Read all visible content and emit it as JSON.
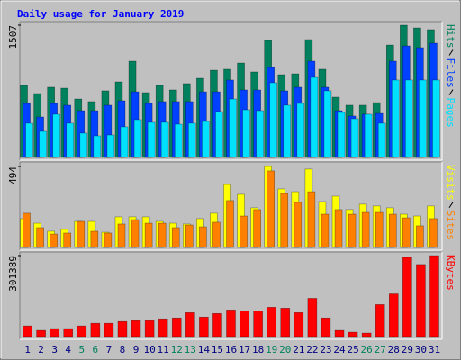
{
  "title": "Daily usage for January 2019",
  "chart_data": [
    {
      "type": "bar",
      "ylim": [
        0,
        1507
      ],
      "yticks": [
        1507
      ],
      "series": [
        {
          "name": "Hits",
          "color": "#00805c",
          "values": [
            820,
            728,
            800,
            789,
            666,
            636,
            759,
            861,
            1097,
            738,
            820,
            769,
            841,
            902,
            994,
            1005,
            1076,
            974,
            1333,
            943,
            953,
            1343,
            1005,
            687,
            595,
            595,
            625,
            1281,
            1507,
            1476,
            1456
          ]
        },
        {
          "name": "Files",
          "color": "#0040ff",
          "values": [
            615,
            461,
            615,
            595,
            533,
            533,
            595,
            646,
            748,
            615,
            636,
            636,
            636,
            748,
            748,
            882,
            769,
            769,
            1025,
            759,
            800,
            1097,
            800,
            533,
            472,
            492,
            502,
            1097,
            1271,
            1251,
            1302
          ]
        },
        {
          "name": "Pages",
          "color": "#00e0ff",
          "values": [
            390,
            297,
            492,
            390,
            277,
            246,
            256,
            349,
            431,
            400,
            400,
            379,
            390,
            410,
            523,
            666,
            543,
            533,
            851,
            595,
            615,
            912,
            759,
            513,
            441,
            492,
            390,
            882,
            882,
            882,
            882
          ]
        }
      ]
    },
    {
      "type": "bar",
      "ylim": [
        0,
        494
      ],
      "yticks": [
        494
      ],
      "series": [
        {
          "name": "Visits",
          "color": "#ffff00",
          "values": [
            176,
            148,
            99,
            110,
            159,
            159,
            93,
            187,
            187,
            187,
            159,
            148,
            143,
            176,
            209,
            384,
            324,
            242,
            494,
            357,
            340,
            478,
            280,
            313,
            231,
            264,
            253,
            242,
            203,
            192,
            253
          ]
        },
        {
          "name": "Sites",
          "color": "#ff8000",
          "values": [
            209,
            121,
            82,
            88,
            159,
            99,
            88,
            143,
            170,
            148,
            148,
            121,
            137,
            126,
            154,
            286,
            192,
            231,
            467,
            329,
            275,
            340,
            203,
            231,
            203,
            214,
            214,
            203,
            181,
            132,
            176
          ]
        }
      ]
    },
    {
      "type": "bar",
      "ylim": [
        0,
        301389
      ],
      "yticks": [
        301389
      ],
      "categories": [
        "1",
        "2",
        "3",
        "4",
        "5",
        "6",
        "7",
        "8",
        "9",
        "10",
        "11",
        "12",
        "13",
        "14",
        "15",
        "16",
        "17",
        "18",
        "19",
        "20",
        "21",
        "22",
        "23",
        "24",
        "25",
        "26",
        "27",
        "28",
        "29",
        "30",
        "31"
      ],
      "category_colors": [
        "#000080",
        "#000080",
        "#000080",
        "#000080",
        "#00805c",
        "#00805c",
        "#000080",
        "#000080",
        "#000080",
        "#000080",
        "#000080",
        "#00805c",
        "#00805c",
        "#000080",
        "#000080",
        "#000080",
        "#000080",
        "#000080",
        "#00805c",
        "#00805c",
        "#000080",
        "#000080",
        "#000080",
        "#000080",
        "#000080",
        "#00805c",
        "#00805c",
        "#000080",
        "#000080",
        "#000080",
        "#000080"
      ],
      "series": [
        {
          "name": "KBytes",
          "color": "#ff0000",
          "values": [
            39744,
            23184,
            29808,
            29808,
            39744,
            49680,
            49680,
            56304,
            59616,
            59616,
            66240,
            69552,
            89424,
            72864,
            86112,
            99360,
            96048,
            96048,
            109296,
            105984,
            89424,
            142416,
            69552,
            23184,
            16560,
            13248,
            119232,
            158976,
            294768,
            268272,
            301389
          ]
        }
      ]
    }
  ]
}
